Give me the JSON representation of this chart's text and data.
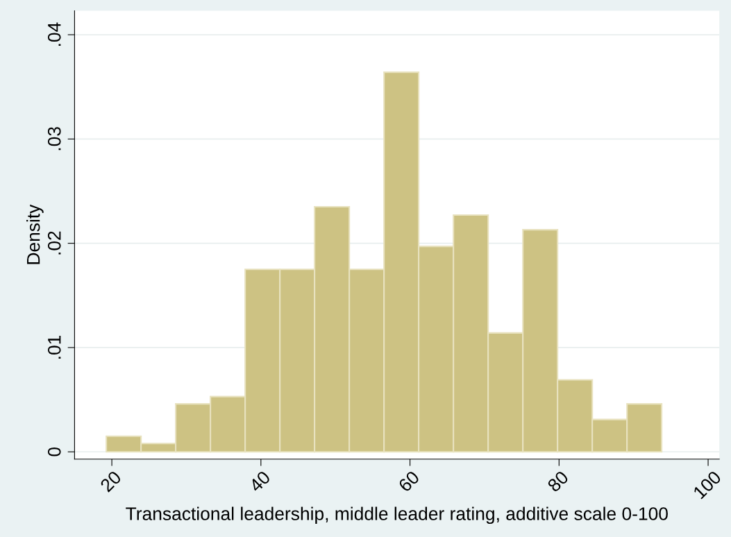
{
  "chart_data": {
    "type": "histogram",
    "xlabel": "Transactional leadership, middle leader rating, additive scale 0-100",
    "ylabel": "Density",
    "bins": [
      19.26,
      23.92,
      28.57,
      33.23,
      37.89,
      42.55,
      47.2,
      51.86,
      56.52,
      61.17,
      65.83,
      70.49,
      75.15,
      79.8,
      84.46,
      89.12,
      93.77
    ],
    "values": [
      0.0015,
      0.0008,
      0.0046,
      0.0053,
      0.0175,
      0.0175,
      0.0235,
      0.0175,
      0.0364,
      0.0197,
      0.0227,
      0.0114,
      0.0213,
      0.0069,
      0.0031,
      0.0046
    ],
    "color": "#cdc283",
    "xlim": [
      15,
      101.5
    ],
    "xticks": [
      20,
      40,
      60,
      80,
      100
    ],
    "ylim": [
      -0.0007,
      0.0423
    ],
    "yticks": [
      0,
      {
        "value": 0.01,
        "label": ".01"
      },
      {
        "value": 0.02,
        "label": ".02"
      },
      {
        "value": 0.03,
        "label": ".03"
      },
      {
        "value": 0.04,
        "label": ".04"
      }
    ],
    "grid": "y"
  }
}
